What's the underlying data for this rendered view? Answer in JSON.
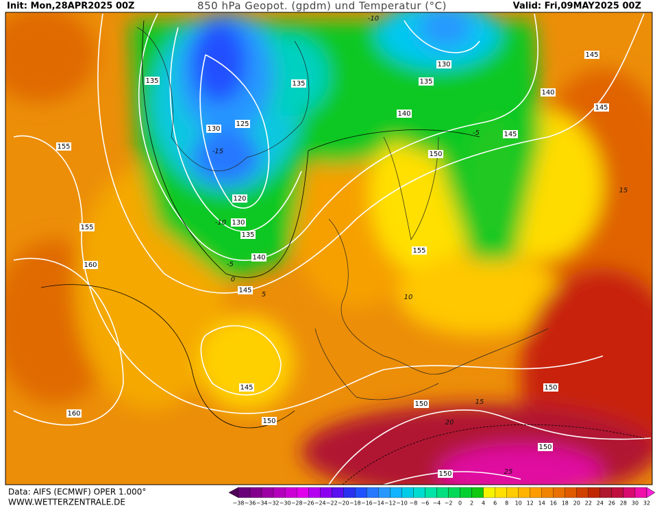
{
  "header": {
    "init": "Init: Mon,28APR2025 00Z",
    "title": "850 hPa Geopot. (gpdm) und Temperatur (°C)",
    "valid": "Valid: Fri,09MAY2025 00Z"
  },
  "footer": {
    "data_source": "Data: AIFS (ECMWF) OPER 1.000°",
    "website": "WWW.WETTERZENTRALE.DE"
  },
  "colorbar": {
    "labels": [
      "−38",
      "−36",
      "−34",
      "−32",
      "−30",
      "−28",
      "−26",
      "−24",
      "−22",
      "−20",
      "−18",
      "−16",
      "−14",
      "−12",
      "−10",
      "−8",
      "−6",
      "−4",
      "−2",
      "0",
      "2",
      "4",
      "6",
      "8",
      "10",
      "12",
      "14",
      "16",
      "18",
      "20",
      "22",
      "24",
      "26",
      "28",
      "30",
      "32"
    ],
    "colors": [
      "#500058",
      "#6a007a",
      "#82008c",
      "#9c00a4",
      "#b400bc",
      "#cc00d4",
      "#e000ec",
      "#b400f0",
      "#8c00f0",
      "#5a10f0",
      "#2a30f0",
      "#2050ff",
      "#2878ff",
      "#2898ff",
      "#10b4ff",
      "#00cce8",
      "#00dcd0",
      "#00e4a8",
      "#00e080",
      "#00d858",
      "#00d030",
      "#10c810",
      "#f4f400",
      "#ffe000",
      "#ffcc00",
      "#ffb400",
      "#ff9c00",
      "#f08400",
      "#e87000",
      "#e05a00",
      "#d04000",
      "#c02800",
      "#b01830",
      "#c01040",
      "#d80c70",
      "#ee10a8",
      "#ff20d8"
    ]
  },
  "geopotential_labels": [
    "135",
    "135",
    "130",
    "125",
    "120",
    "130",
    "135",
    "140",
    "145",
    "130",
    "135",
    "140",
    "140",
    "145",
    "145",
    "145",
    "150",
    "155",
    "155",
    "160",
    "155",
    "145",
    "150",
    "160",
    "150",
    "150",
    "150",
    "150"
  ],
  "temperature_labels": [
    "-10",
    "-15",
    "-10",
    "-5",
    "0",
    "-5",
    "15",
    "10",
    "5",
    "15",
    "20",
    "25"
  ]
}
